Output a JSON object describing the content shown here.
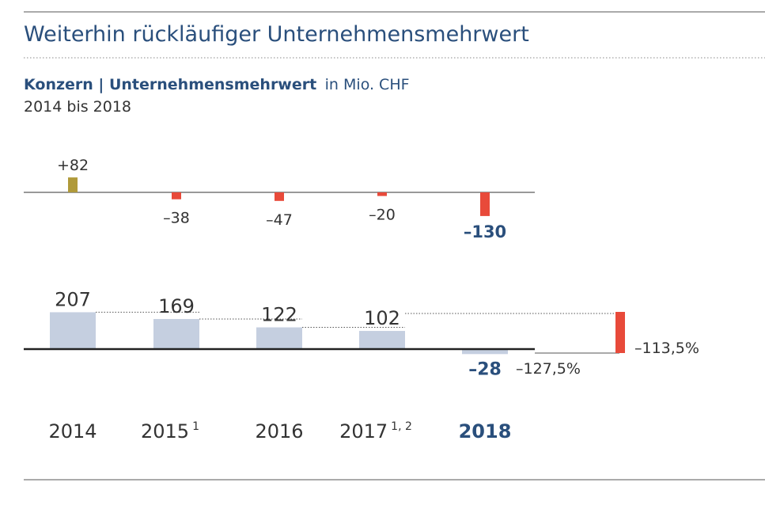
{
  "header": {
    "title": "Weiterhin rückläufiger Unternehmensmehrwert",
    "subtitle_bold": "Konzern | Unternehmensmehrwert",
    "subtitle_unit": "in Mio. CHF",
    "range": "2014 bis 2018"
  },
  "colors": {
    "title": "#2a4f7c",
    "text": "#333333",
    "bar_positive_change": "#b09a3a",
    "bar_negative_change": "#e84a3a",
    "bar_value": "#c5cfe0"
  },
  "chart_data": [
    {
      "type": "bar",
      "description_free": true,
      "categories": [
        "2014",
        "2015",
        "2016",
        "2017",
        "2018"
      ],
      "values": [
        82,
        -38,
        -47,
        -20,
        -130
      ],
      "value_labels": [
        "+82",
        "–38",
        "–47",
        "–20",
        "–130"
      ]
    },
    {
      "type": "bar",
      "categories": [
        "2014",
        "2015",
        "2016",
        "2017",
        "2018"
      ],
      "category_labels": [
        {
          "text": "2014",
          "sup": ""
        },
        {
          "text": "2015",
          "sup": "1"
        },
        {
          "text": "2016",
          "sup": ""
        },
        {
          "text": "2017",
          "sup": "1, 2"
        },
        {
          "text": "2018",
          "sup": ""
        }
      ],
      "values": [
        207,
        169,
        122,
        102,
        -28
      ],
      "value_labels": [
        "207",
        "169",
        "122",
        "102",
        "–28"
      ],
      "change_2017_2018": {
        "value_pct": -127.5,
        "label": "–127,5%"
      },
      "change_2014_2018": {
        "value_pct": -113.5,
        "label": "–113,5%"
      }
    }
  ]
}
